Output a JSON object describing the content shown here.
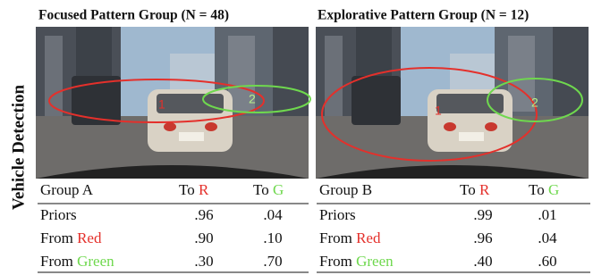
{
  "side_label": "Vehicle Detection",
  "panels": [
    {
      "title": "Focused Pattern Group (N = 48)",
      "regions": [
        "1",
        "2"
      ],
      "table": {
        "header": [
          "Group A",
          "To",
          "R",
          "To",
          "G"
        ],
        "rows": [
          [
            "Priors",
            ".96",
            ".04"
          ],
          [
            "From",
            "Red",
            ".90",
            ".10"
          ],
          [
            "From",
            "Green",
            ".30",
            ".70"
          ]
        ]
      }
    },
    {
      "title": "Explorative Pattern Group (N = 12)",
      "regions": [
        "1",
        "2"
      ],
      "table": {
        "header": [
          "Group B",
          "To",
          "R",
          "To",
          "G"
        ],
        "rows": [
          [
            "Priors",
            ".99",
            ".01"
          ],
          [
            "From",
            "Red",
            ".96",
            ".04"
          ],
          [
            "From",
            "Green",
            ".40",
            ".60"
          ]
        ]
      }
    }
  ]
}
